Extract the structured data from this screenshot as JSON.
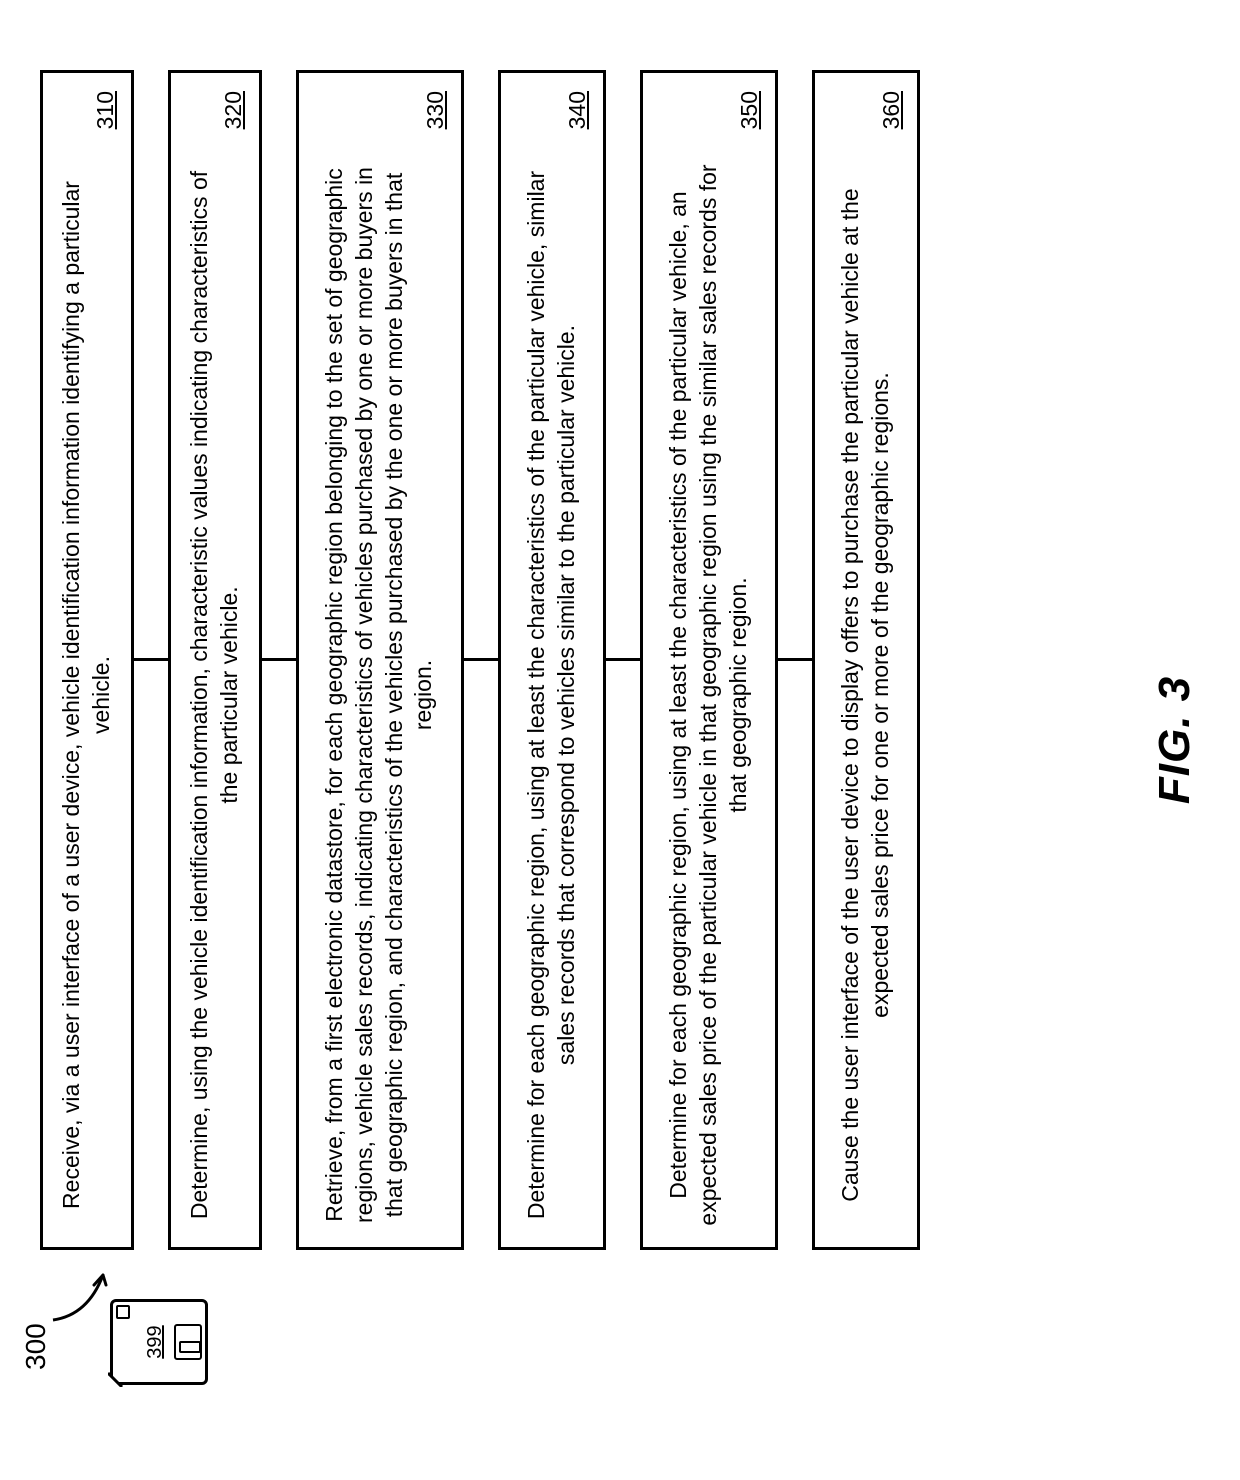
{
  "figure": {
    "top_ref": "300",
    "disk_ref": "399",
    "label": "FIG. 3",
    "steps": [
      {
        "text": "Receive, via a user interface of a user device, vehicle identification information identifying a particular vehicle.",
        "ref": "310",
        "min_height": 88
      },
      {
        "text": "Determine, using the vehicle identification information, characteristic values indicating characteristics of the particular vehicle.",
        "ref": "320",
        "min_height": 88
      },
      {
        "text": "Retrieve, from a first electronic datastore, for each geographic region belonging to the set of geographic regions, vehicle sales records, indicating characteristics of vehicles purchased by one or more buyers in that geographic region, and characteristics of the vehicles purchased by the one or more buyers in that region.",
        "ref": "330",
        "min_height": 168
      },
      {
        "text": "Determine for each geographic region, using at least the characteristics of the particular vehicle, similar sales records that correspond to vehicles similar to the particular vehicle.",
        "ref": "340",
        "min_height": 108
      },
      {
        "text": "Determine for each geographic region, using at least the characteristics of the particular vehicle, an expected sales price of the particular vehicle in that geographic region using the similar sales records for that geographic region.",
        "ref": "350",
        "min_height": 138
      },
      {
        "text": "Cause the user interface of the user device to display offers to purchase the particular vehicle at the expected sales price for one or more of the geographic regions.",
        "ref": "360",
        "min_height": 108
      }
    ]
  },
  "style": {
    "border_color": "#000000",
    "background_color": "#ffffff",
    "font_family": "Arial",
    "step_font_size": 23,
    "ref_font_size": 23,
    "fig_font_size": 44,
    "border_width": 3,
    "connector_height": 34
  }
}
